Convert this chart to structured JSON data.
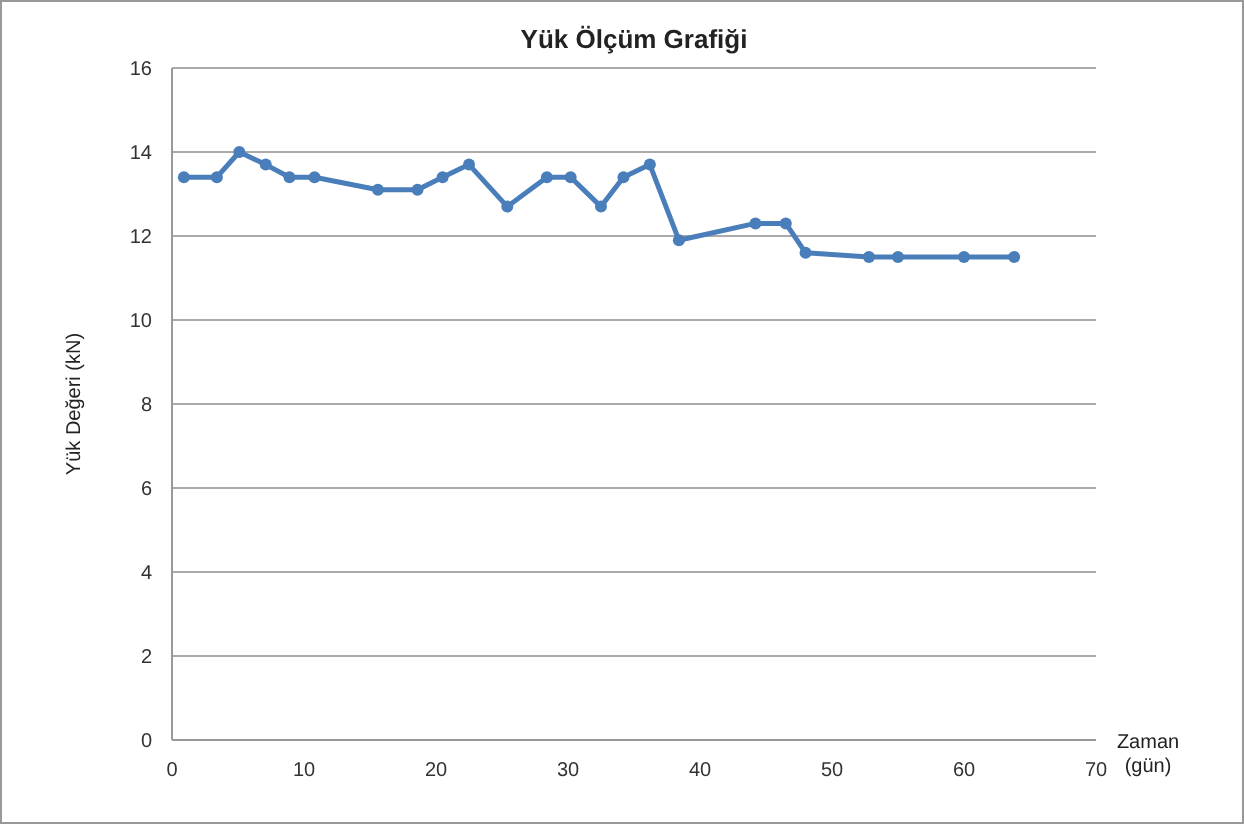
{
  "chart_data": {
    "type": "line",
    "title": "Yük Ölçüm Grafiği",
    "xlabel": "Zaman (gün)",
    "ylabel": "Yük Değeri (kN)",
    "x": [
      0.9,
      3.4,
      5.1,
      7.1,
      8.9,
      10.8,
      15.6,
      18.6,
      20.5,
      22.5,
      25.4,
      28.4,
      30.2,
      32.5,
      34.2,
      36.2,
      38.4,
      44.2,
      46.5,
      48,
      52.8,
      55,
      60,
      63.8
    ],
    "series": [
      {
        "color": "#4a7ebb",
        "values": [
          13.4,
          13.4,
          14.0,
          13.7,
          13.4,
          13.4,
          13.1,
          13.1,
          13.4,
          13.7,
          12.7,
          13.4,
          13.4,
          12.7,
          13.4,
          13.7,
          11.9,
          12.3,
          12.3,
          11.6,
          11.5,
          11.5,
          11.5,
          11.5
        ]
      }
    ],
    "xlim": [
      0,
      70
    ],
    "xticks": [
      0,
      10,
      20,
      30,
      40,
      50,
      60,
      70
    ],
    "ylim": [
      0,
      16
    ],
    "yticks": [
      0,
      2,
      4,
      6,
      8,
      10,
      12,
      14,
      16
    ],
    "grid": "y",
    "marker": "circle",
    "line_style": "solid"
  }
}
